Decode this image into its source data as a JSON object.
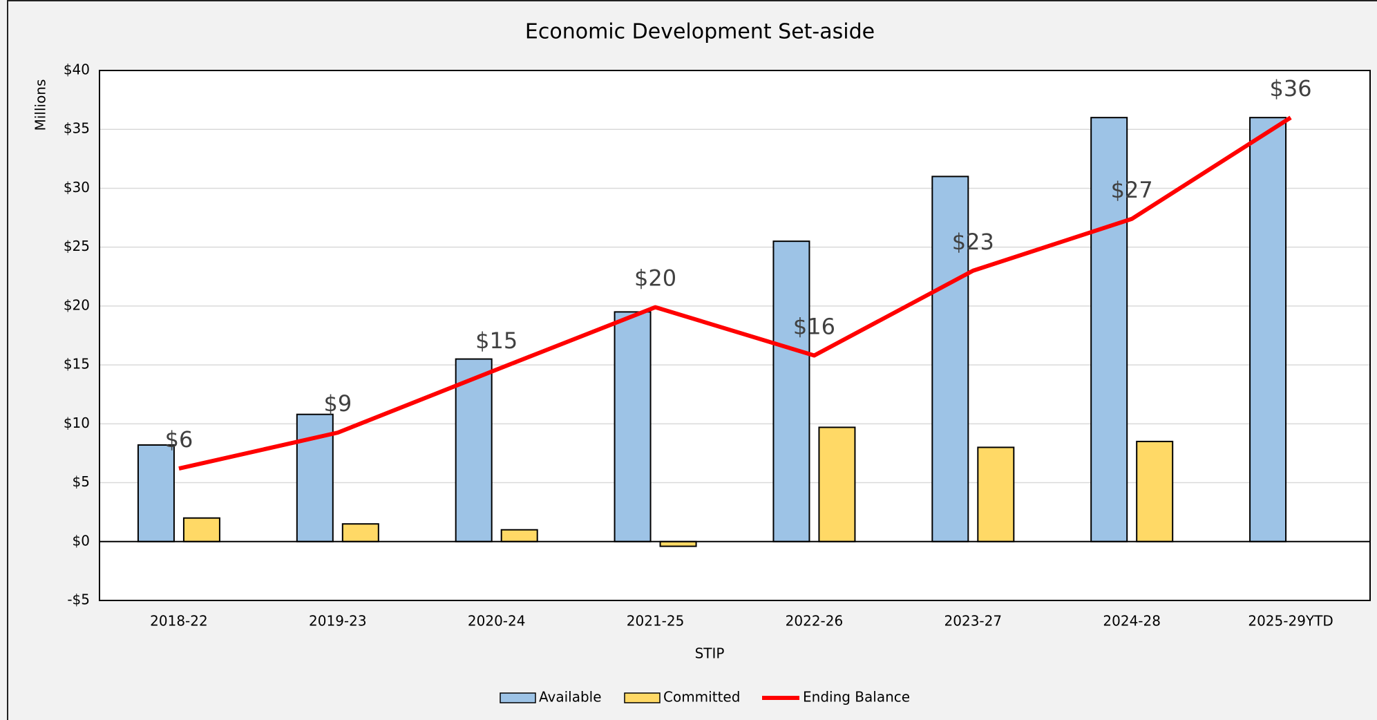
{
  "chart_data": {
    "type": "bar",
    "title": "Economic Development Set-aside",
    "y_label": "Millions",
    "x_label": "STIP",
    "categories": [
      "2018-22",
      "2019-23",
      "2020-24",
      "2021-25",
      "2022-26",
      "2023-27",
      "2024-28",
      "2025-29YTD"
    ],
    "series": [
      {
        "name": "Available",
        "type": "bar",
        "color": "#9dc3e6",
        "values": [
          8.2,
          10.8,
          15.5,
          19.5,
          25.5,
          31,
          36,
          36
        ]
      },
      {
        "name": "Committed",
        "type": "bar",
        "color": "#ffd966",
        "values": [
          2,
          1.5,
          1,
          -0.4,
          9.7,
          8,
          8.5,
          null
        ]
      },
      {
        "name": "Ending Balance",
        "type": "line",
        "color": "#ff0000",
        "values": [
          6.2,
          9.25,
          14.6,
          19.9,
          15.8,
          23,
          27.4,
          36
        ],
        "value_labels": [
          "$6",
          "$9",
          "$15",
          "$20",
          "$16",
          "$23",
          "$27",
          "$36"
        ]
      }
    ],
    "ylim": [
      -5,
      40
    ],
    "yticks": [
      {
        "value": -5,
        "label": "-$5"
      },
      {
        "value": 0,
        "label": "$0"
      },
      {
        "value": 5,
        "label": "$5"
      },
      {
        "value": 10,
        "label": "$10"
      },
      {
        "value": 15,
        "label": "$15"
      },
      {
        "value": 20,
        "label": "$20"
      },
      {
        "value": 25,
        "label": "$25"
      },
      {
        "value": 30,
        "label": "$30"
      },
      {
        "value": 35,
        "label": "$35"
      },
      {
        "value": 40,
        "label": "$40"
      }
    ],
    "grid": true,
    "legend": "bottom"
  }
}
